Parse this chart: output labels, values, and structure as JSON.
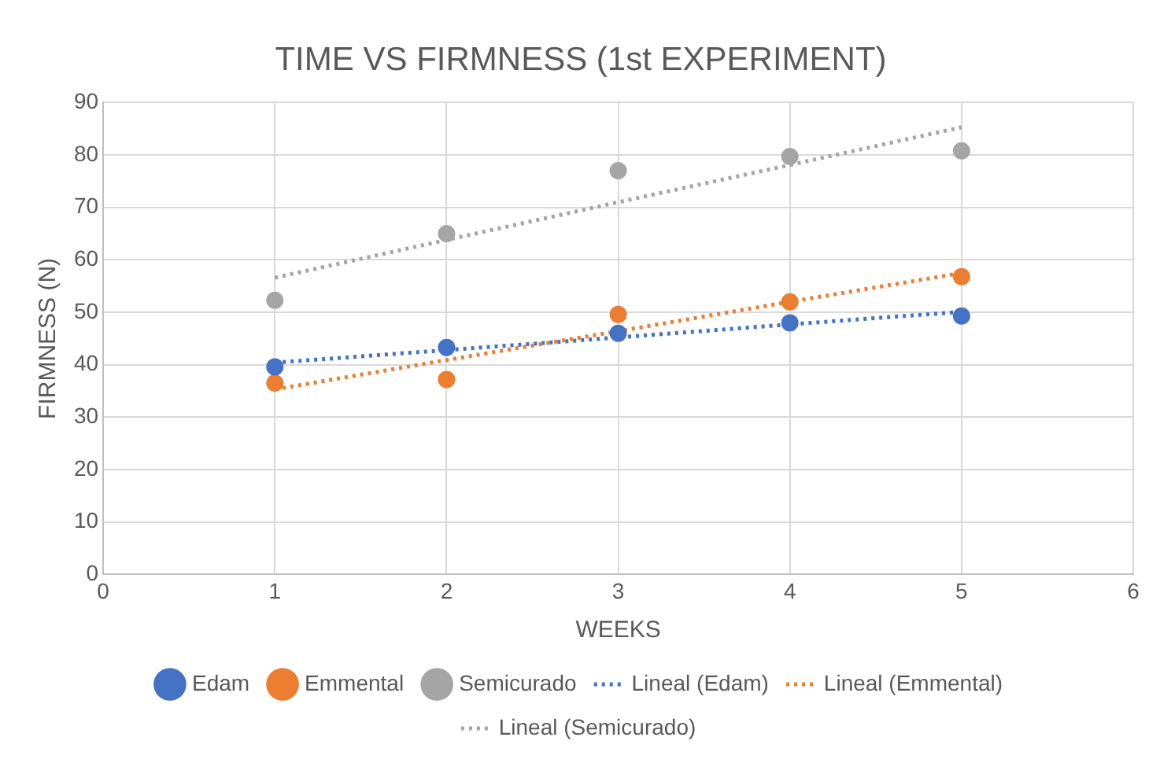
{
  "chart_data": {
    "type": "scatter",
    "title": "TIME VS FIRMNESS (1st EXPERIMENT)",
    "xlabel": "WEEKS",
    "ylabel": "FIRMNESS (N)",
    "x": [
      1,
      2,
      3,
      4,
      5
    ],
    "series": [
      {
        "name": "Edam",
        "color": "#4472c4",
        "values": [
          39.6,
          43.3,
          46,
          48,
          49.3
        ]
      },
      {
        "name": "Emmental",
        "color": "#ed7d31",
        "values": [
          36.5,
          37.2,
          49.6,
          52,
          56.8
        ]
      },
      {
        "name": "Semicurado",
        "color": "#a5a5a5",
        "values": [
          52.3,
          65,
          77,
          79.7,
          80.8
        ]
      },
      {
        "name": "Lineal (Edam)",
        "type": "line",
        "color": "#4472c4",
        "values": [
          40.4,
          42.8,
          45.2,
          47.7,
          50.1
        ],
        "line_style": "dotted",
        "marker": "none"
      },
      {
        "name": "Lineal (Emmental)",
        "type": "line",
        "color": "#ed7d31",
        "values": [
          35.3,
          40.9,
          46.4,
          52,
          57.5
        ],
        "line_style": "dotted",
        "marker": "none"
      },
      {
        "name": "Lineal (Semicurado)",
        "type": "line",
        "color": "#a5a5a5",
        "values": [
          56.6,
          63.8,
          71,
          78.1,
          85.3
        ],
        "line_style": "dotted",
        "marker": "none"
      }
    ],
    "xlim": [
      0,
      6
    ],
    "xticks": [
      0,
      1,
      2,
      3,
      4,
      5,
      6
    ],
    "ylim": [
      0,
      90
    ],
    "yticks": [
      0,
      10,
      20,
      30,
      40,
      50,
      60,
      70,
      80,
      90
    ],
    "grid": true,
    "legend": "bottom",
    "marker": "circle"
  }
}
